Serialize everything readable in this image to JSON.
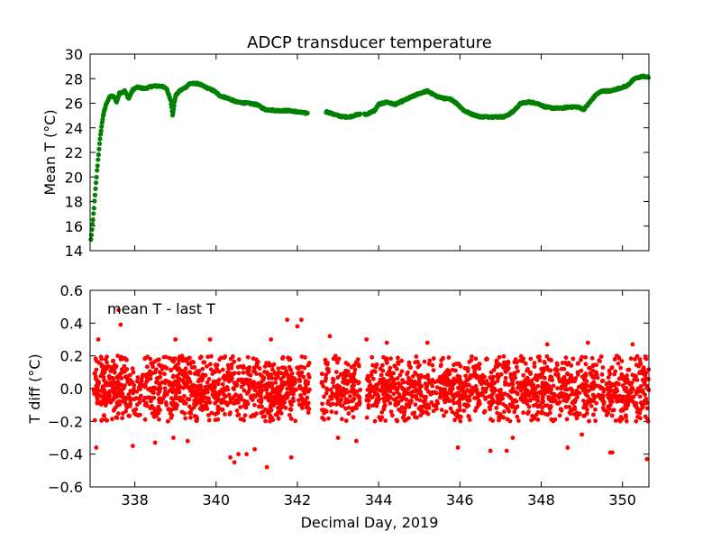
{
  "chart_data": [
    {
      "type": "scatter",
      "title": "ADCP transducer temperature",
      "xlabel": "",
      "ylabel": "Mean T (°C)",
      "xlim": [
        336.9,
        350.65
      ],
      "ylim": [
        14,
        30
      ],
      "yticks": [
        14,
        16,
        18,
        20,
        22,
        24,
        26,
        28,
        30
      ],
      "ytick_labels": [
        "14",
        "16",
        "18",
        "20",
        "22",
        "24",
        "26",
        "28",
        "30"
      ],
      "xticks": [
        338,
        340,
        342,
        344,
        346,
        348,
        350
      ],
      "xtick_labels": [],
      "grid": false,
      "series": [
        {
          "color": "#008000",
          "marker": "dot",
          "gaps": [
            [
              342.25,
              342.7
            ],
            [
              343.55,
              343.65
            ]
          ],
          "points": [
            [
              336.92,
              14.9
            ],
            [
              336.97,
              16.5
            ],
            [
              337.02,
              18.5
            ],
            [
              337.07,
              20.5
            ],
            [
              337.12,
              22.3
            ],
            [
              337.17,
              23.8
            ],
            [
              337.22,
              25.0
            ],
            [
              337.3,
              26.0
            ],
            [
              337.4,
              26.6
            ],
            [
              337.5,
              26.5
            ],
            [
              337.55,
              26.1
            ],
            [
              337.62,
              26.8
            ],
            [
              337.75,
              27.0
            ],
            [
              337.85,
              26.4
            ],
            [
              337.95,
              27.1
            ],
            [
              338.05,
              27.3
            ],
            [
              338.25,
              27.2
            ],
            [
              338.45,
              27.4
            ],
            [
              338.65,
              27.4
            ],
            [
              338.78,
              27.2
            ],
            [
              338.88,
              26.3
            ],
            [
              338.93,
              25.0
            ],
            [
              339.0,
              26.6
            ],
            [
              339.1,
              27.0
            ],
            [
              339.25,
              27.3
            ],
            [
              339.35,
              27.6
            ],
            [
              339.55,
              27.6
            ],
            [
              339.75,
              27.3
            ],
            [
              339.95,
              27.0
            ],
            [
              340.1,
              26.6
            ],
            [
              340.3,
              26.4
            ],
            [
              340.5,
              26.1
            ],
            [
              340.8,
              26.0
            ],
            [
              341.0,
              25.9
            ],
            [
              341.2,
              25.5
            ],
            [
              341.5,
              25.4
            ],
            [
              341.8,
              25.4
            ],
            [
              342.0,
              25.3
            ],
            [
              342.2,
              25.2
            ],
            [
              342.72,
              25.3
            ],
            [
              342.9,
              25.1
            ],
            [
              343.1,
              24.9
            ],
            [
              343.3,
              24.9
            ],
            [
              343.5,
              25.1
            ],
            [
              343.7,
              25.1
            ],
            [
              343.9,
              25.4
            ],
            [
              344.0,
              25.9
            ],
            [
              344.2,
              26.1
            ],
            [
              344.4,
              25.9
            ],
            [
              344.6,
              26.2
            ],
            [
              344.8,
              26.5
            ],
            [
              345.0,
              26.8
            ],
            [
              345.2,
              27.0
            ],
            [
              345.4,
              26.6
            ],
            [
              345.6,
              26.4
            ],
            [
              345.8,
              26.3
            ],
            [
              345.95,
              25.9
            ],
            [
              346.1,
              25.4
            ],
            [
              346.3,
              25.1
            ],
            [
              346.5,
              24.9
            ],
            [
              346.8,
              24.9
            ],
            [
              347.1,
              24.9
            ],
            [
              347.3,
              25.3
            ],
            [
              347.5,
              26.0
            ],
            [
              347.7,
              26.1
            ],
            [
              347.9,
              26.0
            ],
            [
              348.1,
              25.7
            ],
            [
              348.3,
              25.6
            ],
            [
              348.5,
              25.6
            ],
            [
              348.7,
              25.7
            ],
            [
              348.9,
              25.7
            ],
            [
              349.05,
              25.5
            ],
            [
              349.2,
              26.1
            ],
            [
              349.35,
              26.7
            ],
            [
              349.5,
              27.0
            ],
            [
              349.7,
              27.0
            ],
            [
              349.9,
              27.2
            ],
            [
              350.1,
              27.4
            ],
            [
              350.3,
              28.0
            ],
            [
              350.5,
              28.2
            ],
            [
              350.65,
              28.1
            ]
          ]
        }
      ]
    },
    {
      "type": "scatter",
      "title": "",
      "xlabel": "Decimal Day, 2019",
      "ylabel": "T diff (°C)",
      "xlim": [
        336.9,
        350.65
      ],
      "ylim": [
        -0.6,
        0.6
      ],
      "yticks": [
        -0.6,
        -0.4,
        -0.2,
        0.0,
        0.2,
        0.4,
        0.6
      ],
      "ytick_labels": [
        "−0.6",
        "−0.4",
        "−0.2",
        "0.0",
        "0.2",
        "0.4",
        "0.6"
      ],
      "xticks": [
        338,
        340,
        342,
        344,
        346,
        348,
        350
      ],
      "xtick_labels": [
        "338",
        "340",
        "342",
        "344",
        "346",
        "348",
        "350"
      ],
      "grid": false,
      "annotation": "mean T - last T",
      "series": [
        {
          "color": "#ff0000",
          "marker": "dot",
          "band": [
            -0.2,
            0.2
          ],
          "gaps": [
            [
              342.3,
              342.6
            ],
            [
              343.55,
              343.7
            ]
          ],
          "outliers": [
            [
              337.05,
              -0.36
            ],
            [
              337.1,
              0.3
            ],
            [
              337.6,
              0.48
            ],
            [
              337.65,
              0.39
            ],
            [
              337.95,
              -0.35
            ],
            [
              338.5,
              -0.33
            ],
            [
              338.95,
              -0.3
            ],
            [
              339.0,
              0.3
            ],
            [
              339.3,
              -0.32
            ],
            [
              339.85,
              0.3
            ],
            [
              340.35,
              -0.42
            ],
            [
              340.45,
              -0.45
            ],
            [
              340.55,
              -0.4
            ],
            [
              340.75,
              -0.4
            ],
            [
              340.95,
              -0.37
            ],
            [
              341.25,
              -0.48
            ],
            [
              341.35,
              0.3
            ],
            [
              341.75,
              0.42
            ],
            [
              341.85,
              -0.42
            ],
            [
              342.0,
              0.38
            ],
            [
              342.1,
              0.42
            ],
            [
              342.8,
              0.32
            ],
            [
              343.0,
              -0.3
            ],
            [
              343.45,
              -0.32
            ],
            [
              343.7,
              0.3
            ],
            [
              344.2,
              0.28
            ],
            [
              345.2,
              0.28
            ],
            [
              345.95,
              -0.36
            ],
            [
              346.75,
              -0.38
            ],
            [
              347.15,
              -0.38
            ],
            [
              347.3,
              -0.3
            ],
            [
              348.15,
              0.27
            ],
            [
              348.65,
              -0.36
            ],
            [
              349.0,
              -0.28
            ],
            [
              349.15,
              0.28
            ],
            [
              349.7,
              -0.39
            ],
            [
              349.75,
              -0.39
            ],
            [
              350.25,
              0.27
            ],
            [
              350.6,
              -0.43
            ]
          ]
        }
      ]
    }
  ]
}
